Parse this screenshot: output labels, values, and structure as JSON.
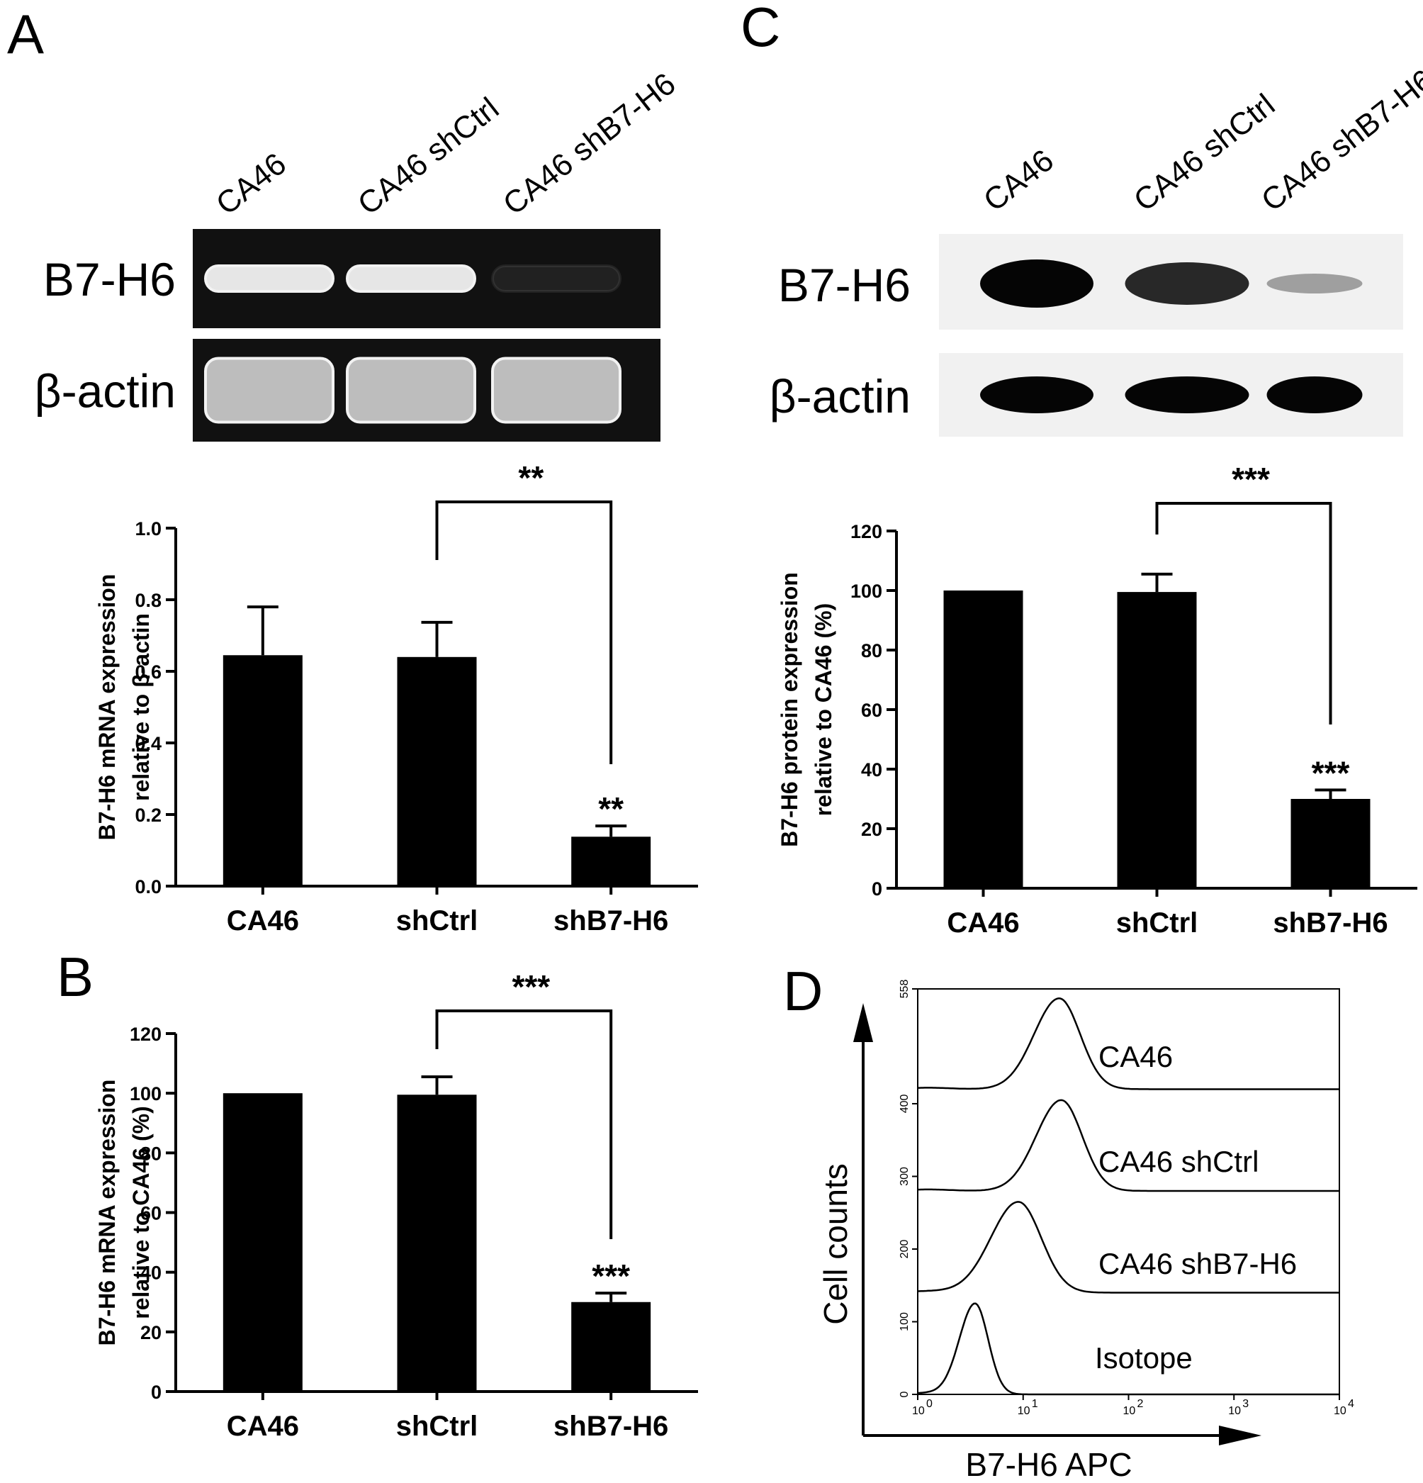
{
  "panels": {
    "A": {
      "letter": "A",
      "lanes": [
        "CA46",
        "CA46 shCtrl",
        "CA46 shB7-H6"
      ],
      "blot_rows": [
        "B7-H6",
        "β-actin"
      ],
      "band_intensity": {
        "B7-H6": [
          1.0,
          1.0,
          0.08
        ],
        "β-actin": [
          1.0,
          1.0,
          1.0
        ]
      }
    },
    "B": {
      "letter": "B"
    },
    "C": {
      "letter": "C",
      "lanes": [
        "CA46",
        "CA46 shCtrl",
        "CA46 shB7-H6"
      ],
      "blot_rows": [
        "B7-H6",
        "β-actin"
      ],
      "band_intensity": {
        "B7-H6": [
          1.0,
          0.85,
          0.3
        ],
        "β-actin": [
          1.0,
          1.0,
          1.0
        ]
      }
    },
    "D": {
      "letter": "D"
    }
  },
  "chart_data": [
    {
      "id": "A",
      "type": "bar",
      "categories": [
        "CA46",
        "shCtrl",
        "shB7-H6"
      ],
      "values": [
        0.645,
        0.64,
        0.138
      ],
      "errors": [
        0.135,
        0.097,
        0.03
      ],
      "ylabel": [
        "B7-H6 mRNA expression",
        "relative to β-actin"
      ],
      "ylim": [
        0,
        1.0
      ],
      "yticks": [
        "0.0",
        "0.2",
        "0.4",
        "0.6",
        "0.8",
        "1.0"
      ],
      "bar_annotations": [
        "",
        "",
        "**"
      ],
      "bracket": {
        "from": 1,
        "to": 2,
        "label": "**"
      }
    },
    {
      "id": "B",
      "type": "bar",
      "categories": [
        "CA46",
        "shCtrl",
        "shB7-H6"
      ],
      "values": [
        100,
        99.5,
        30
      ],
      "errors": [
        0,
        6,
        3
      ],
      "ylabel": [
        "B7-H6 mRNA expression",
        "relative to CA46 (%)"
      ],
      "ylim": [
        0,
        120
      ],
      "yticks": [
        "0",
        "20",
        "40",
        "60",
        "80",
        "100",
        "120"
      ],
      "bar_annotations": [
        "",
        "",
        "***"
      ],
      "bracket": {
        "from": 1,
        "to": 2,
        "label": "***"
      }
    },
    {
      "id": "C",
      "type": "bar",
      "categories": [
        "CA46",
        "shCtrl",
        "shB7-H6"
      ],
      "values": [
        100,
        99.5,
        30
      ],
      "errors": [
        0,
        6,
        3
      ],
      "ylabel": [
        "B7-H6 protein expression",
        "relative to CA46 (%)"
      ],
      "ylim": [
        0,
        120
      ],
      "yticks": [
        "0",
        "20",
        "40",
        "60",
        "80",
        "100",
        "120"
      ],
      "bar_annotations": [
        "",
        "",
        "***"
      ],
      "bracket": {
        "from": 1,
        "to": 2,
        "label": "***"
      }
    },
    {
      "id": "D",
      "type": "line",
      "title": "",
      "xlabel": "B7-H6 APC",
      "ylabel": "Cell counts",
      "x_scale": "log",
      "xlim": [
        1,
        10000
      ],
      "xticks": [
        "10",
        "10",
        "10",
        "10",
        "10"
      ],
      "xtick_exponents": [
        "0",
        "1",
        "2",
        "3",
        "4"
      ],
      "ylim": [
        0,
        558
      ],
      "yticks": [
        "0",
        "100",
        "200",
        "300",
        "400",
        "558"
      ],
      "series": [
        {
          "name": "CA46",
          "offset": 420,
          "peak_x": 22,
          "peak_height": 125,
          "width": 0.32
        },
        {
          "name": "CA46 shCtrl",
          "offset": 280,
          "peak_x": 23,
          "peak_height": 125,
          "width": 0.32
        },
        {
          "name": "CA46 shB7-H6",
          "offset": 140,
          "peak_x": 9,
          "peak_height": 125,
          "width": 0.35
        },
        {
          "name": "Isotope",
          "offset": 0,
          "peak_x": 3.5,
          "peak_height": 125,
          "width": 0.2
        }
      ]
    }
  ]
}
